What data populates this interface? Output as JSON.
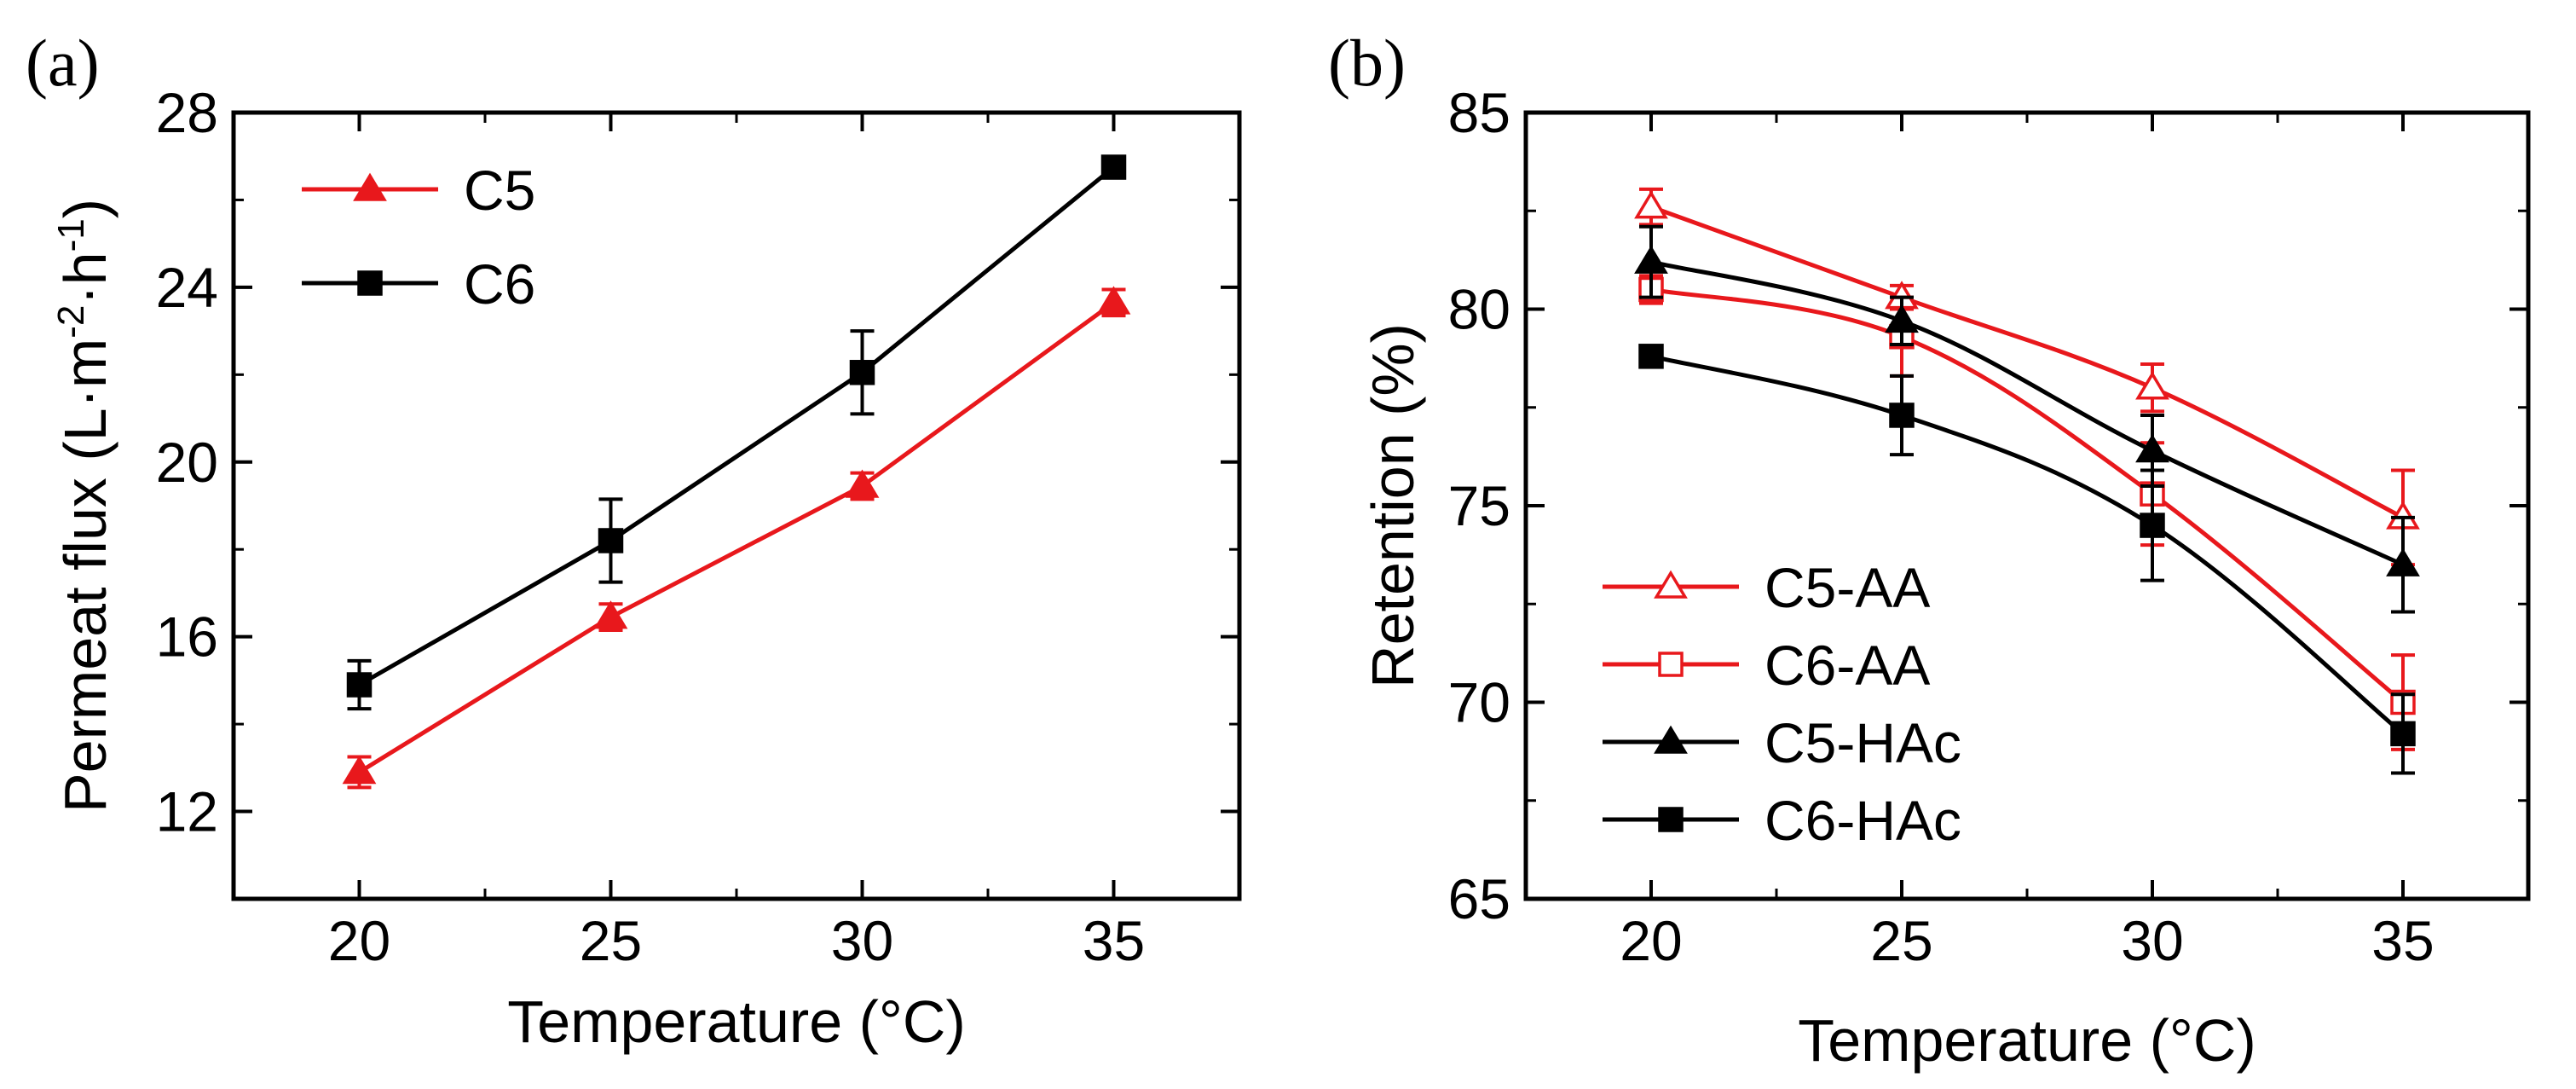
{
  "figure": {
    "panels": [
      "(a)",
      "(b)"
    ]
  },
  "chart_data": [
    {
      "panel_label": "(a)",
      "type": "line",
      "title": "",
      "xlabel": "Temperature (°C)",
      "ylabel": "Permeat flux (L·m⁻²·h⁻¹)",
      "ylabel_parts": {
        "prefix": "Permeat flux (L·m",
        "sup1": "-2",
        "mid": "·h",
        "sup2": "-1",
        "suffix": ")"
      },
      "x": [
        20,
        25,
        30,
        35
      ],
      "xlim": [
        17.5,
        37.5
      ],
      "ylim": [
        10,
        28
      ],
      "xticks": [
        20,
        25,
        30,
        35
      ],
      "yticks": [
        12,
        16,
        20,
        24,
        28
      ],
      "legend_position": "top-left",
      "series": [
        {
          "name": "C5",
          "color": "#e8181c",
          "marker": "triangle",
          "filled": true,
          "values": [
            12.9,
            16.45,
            19.45,
            23.65
          ],
          "errors": [
            0.35,
            0.3,
            0.3,
            0.3
          ]
        },
        {
          "name": "C6",
          "color": "#000000",
          "marker": "square",
          "filled": true,
          "values": [
            14.9,
            18.2,
            22.05,
            26.75
          ],
          "errors": [
            0.55,
            0.95,
            0.95,
            0.15
          ]
        }
      ]
    },
    {
      "panel_label": "(b)",
      "type": "line",
      "title": "",
      "xlabel": "Temperature (°C)",
      "ylabel": "Retention (%)",
      "x": [
        20,
        25,
        30,
        35
      ],
      "xlim": [
        17.5,
        37.5
      ],
      "ylim": [
        65,
        85
      ],
      "xticks": [
        20,
        25,
        30,
        35
      ],
      "yticks": [
        65,
        70,
        75,
        80,
        85
      ],
      "legend_position": "bottom-left",
      "series": [
        {
          "name": "C5-AA",
          "color": "#e8181c",
          "marker": "triangle",
          "filled": false,
          "values": [
            82.6,
            80.3,
            78.0,
            74.7
          ],
          "errors": [
            0.45,
            0.3,
            0.6,
            1.2
          ]
        },
        {
          "name": "C6-AA",
          "color": "#e8181c",
          "marker": "square",
          "filled": false,
          "values": [
            80.5,
            79.3,
            75.3,
            70.0
          ],
          "errors": [
            0.35,
            1.0,
            1.3,
            1.2
          ]
        },
        {
          "name": "C5-HAc",
          "color": "#000000",
          "marker": "triangle",
          "filled": true,
          "values": [
            81.2,
            79.7,
            76.4,
            73.5
          ],
          "errors": [
            0.9,
            0.6,
            0.9,
            1.2
          ]
        },
        {
          "name": "C6-HAc",
          "color": "#000000",
          "marker": "square",
          "filled": true,
          "values": [
            78.8,
            77.3,
            74.5,
            69.2
          ],
          "errors": [
            0.1,
            1.0,
            1.4,
            1.0
          ]
        }
      ]
    }
  ]
}
